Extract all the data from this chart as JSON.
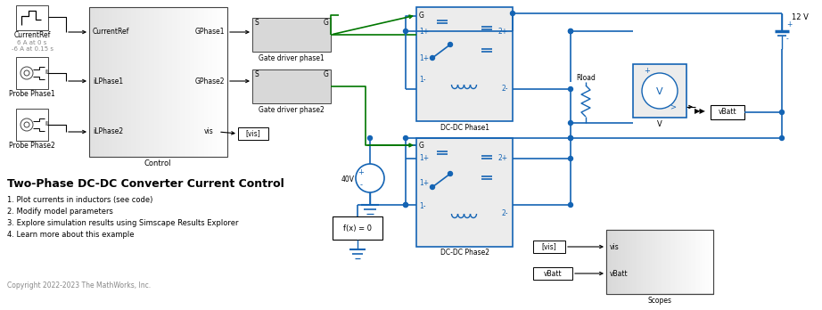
{
  "title": "Two-Phase DC-DC Converter Current Control",
  "bullet_points": [
    "1. Plot currents in inductors (see code)",
    "2. Modify model parameters",
    "3. Explore simulation results using Simscape Results Explorer",
    "4. Learn more about this example"
  ],
  "copyright": "Copyright 2022-2023 The MathWorks, Inc.",
  "block_gray": "#d8d8d8",
  "block_light": "#ececec",
  "block_white": "#ffffff",
  "block_edge_dark": "#444444",
  "block_edge_blue": "#1464b4",
  "line_blue": "#1464b4",
  "line_green": "#007700",
  "line_black": "#000000",
  "text_black": "#000000",
  "text_gray": "#888888",
  "text_blue": "#1464b4",
  "dot_blue": "#1464b4"
}
